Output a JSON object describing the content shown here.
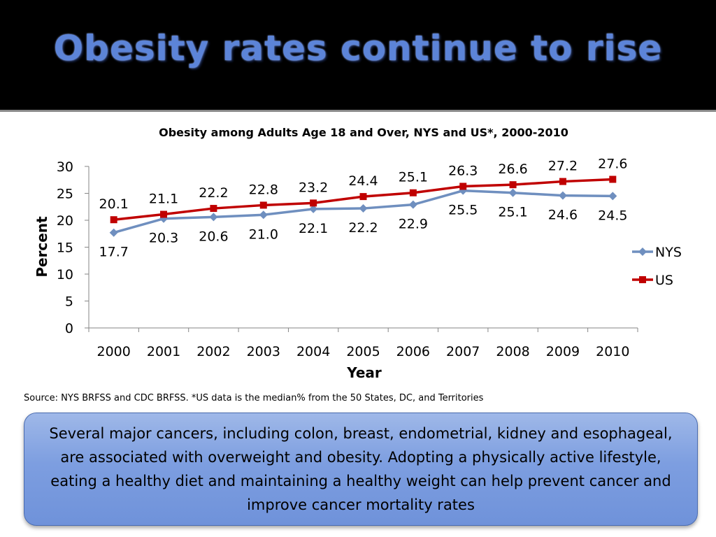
{
  "slide": {
    "title": "Obesity rates continue to rise"
  },
  "chart_data": {
    "type": "line",
    "title": "Obesity among Adults Age 18 and Over, NYS and US*, 2000-2010",
    "xlabel": "Year",
    "ylabel": "Percent",
    "categories": [
      "2000",
      "2001",
      "2002",
      "2003",
      "2004",
      "2005",
      "2006",
      "2007",
      "2008",
      "2009",
      "2010"
    ],
    "ylim": [
      0,
      30
    ],
    "yticks": [
      0,
      5,
      10,
      15,
      20,
      25,
      30
    ],
    "grid": false,
    "legend": "right",
    "series": [
      {
        "name": "NYS",
        "color": "#6f8fbf",
        "marker": "diamond",
        "values": [
          17.7,
          20.3,
          20.6,
          21.0,
          22.1,
          22.2,
          22.9,
          25.5,
          25.1,
          24.6,
          24.5
        ],
        "data_labels": [
          "17.7",
          "20.3",
          "20.6",
          "21.0",
          "22.1",
          "22.2",
          "22.9",
          "25.5",
          "25.1",
          "24.6",
          "24.5"
        ]
      },
      {
        "name": "US",
        "color": "#c00000",
        "marker": "square",
        "values": [
          20.1,
          21.1,
          22.2,
          22.8,
          23.2,
          24.4,
          25.1,
          26.3,
          26.6,
          27.2,
          27.6
        ],
        "data_labels": [
          "20.1",
          "21.1",
          "22.2",
          "22.8",
          "23.2",
          "24.4",
          "25.1",
          "26.3",
          "26.6",
          "27.2",
          "27.6"
        ]
      }
    ]
  },
  "source_note": "Source: NYS BRFSS and CDC BRFSS.  *US data is the median% from the 50 States, DC, and Territories",
  "callout": {
    "text": "Several major cancers, including colon, breast, endometrial, kidney and esophageal, are associated with overweight and obesity.  Adopting a physically active lifestyle, eating a healthy diet and maintaining a healthy weight can help prevent cancer and improve cancer mortality rates"
  }
}
